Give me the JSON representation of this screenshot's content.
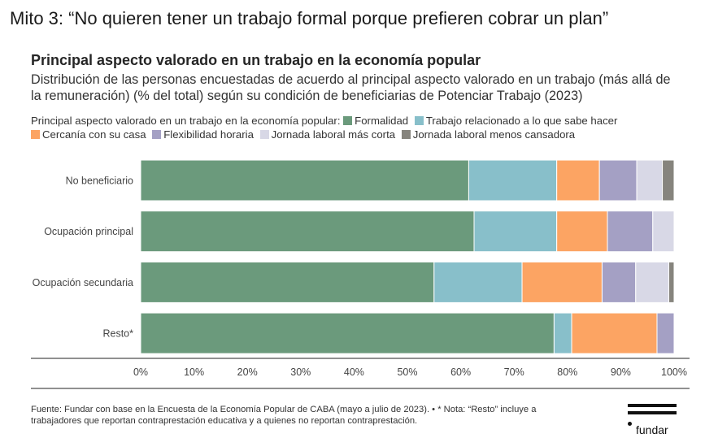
{
  "slide_title": "Mito 3: “No quieren tener un trabajo formal porque prefieren cobrar un plan”",
  "chart_data": {
    "type": "bar",
    "orientation": "horizontal",
    "stacked": true,
    "title": "Principal aspecto valorado en un trabajo en la economía popular",
    "subtitle": "Distribución de las personas encuestadas de acuerdo al principal aspecto valorado en un trabajo (más allá de la remuneración) (% del total) según su condición de beneficiarias de Potenciar Trabajo (2023)",
    "legend_title": "Principal aspecto valorado en un trabajo en la economía popular:",
    "categories": [
      "No beneficiario",
      "Ocupación principal",
      "Ocupación secundaria",
      "Resto*"
    ],
    "series": [
      {
        "name": "Formalidad",
        "color": "#6b9a7c",
        "values": [
          61.5,
          62.5,
          55.0,
          77.5
        ]
      },
      {
        "name": "Trabajo relacionado a lo que sabe hacer",
        "color": "#88bfca",
        "values": [
          16.5,
          15.5,
          16.5,
          3.3
        ]
      },
      {
        "name": "Cercanía con su casa",
        "color": "#fca463",
        "values": [
          8.0,
          9.5,
          15.0,
          16.0
        ]
      },
      {
        "name": "Flexibilidad horaria",
        "color": "#a4a0c4",
        "values": [
          7.0,
          8.5,
          6.3,
          3.2
        ]
      },
      {
        "name": "Jornada laboral más corta",
        "color": "#d8d8e6",
        "values": [
          4.8,
          4.0,
          6.2,
          0
        ]
      },
      {
        "name": "Jornada laboral menos cansadora",
        "color": "#86847d",
        "values": [
          2.2,
          0,
          1.0,
          0
        ]
      }
    ],
    "xlim": [
      0,
      100
    ],
    "xticks": [
      0,
      10,
      20,
      30,
      40,
      50,
      60,
      70,
      80,
      90,
      100
    ],
    "tick_suffix": "%",
    "grid": false
  },
  "footnote": {
    "line1": "Fuente: Fundar con base en la Encuesta de la Economía Popular de CABA (mayo a julio de 2023). • * Nota: “Resto” incluye a",
    "line2": "trabajadores que reportan contraprestación educativa y a quienes no reportan contraprestación."
  },
  "logo": {
    "text": "fundar"
  }
}
